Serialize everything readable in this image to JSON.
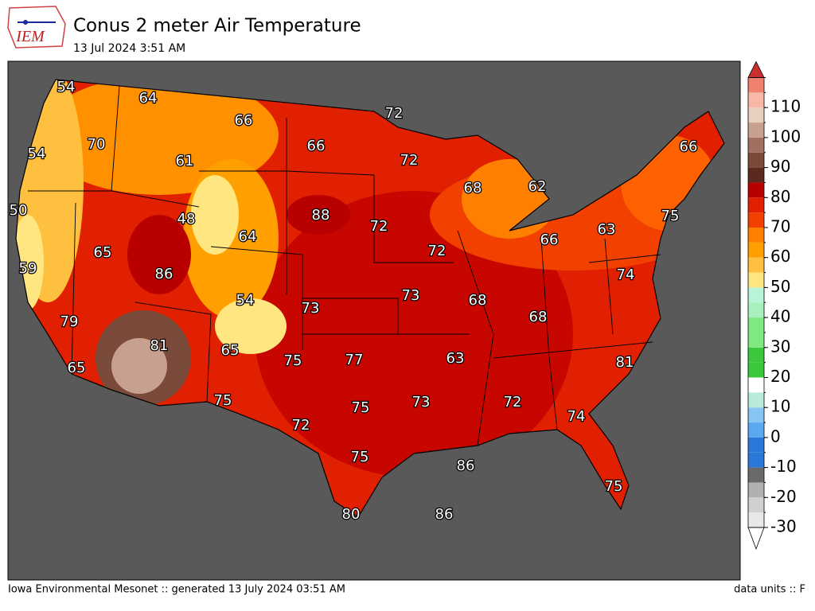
{
  "header": {
    "title": "Conus 2 meter Air Temperature",
    "subtitle": "13 Jul 2024 3:51 AM",
    "logo": "IEM"
  },
  "stations": [
    54,
    64,
    72,
    66,
    66,
    70,
    54,
    61,
    72,
    68,
    62,
    66,
    50,
    88,
    48,
    64,
    72,
    75,
    63,
    66,
    65,
    72,
    59,
    86,
    74,
    73,
    68,
    54,
    73,
    68,
    79,
    81,
    65,
    63,
    75,
    77,
    81,
    65,
    75,
    73,
    72,
    75,
    74,
    72,
    75,
    86,
    75,
    80,
    86
  ],
  "colorbar": {
    "ticks": [
      -30,
      -20,
      -10,
      0,
      10,
      20,
      30,
      40,
      50,
      60,
      70,
      80,
      90,
      100,
      110
    ],
    "levels": [
      -30,
      -25,
      -20,
      -15,
      -10,
      -5,
      0,
      5,
      10,
      15,
      20,
      25,
      30,
      35,
      40,
      45,
      50,
      55,
      60,
      65,
      70,
      75,
      80,
      85,
      90,
      95,
      100,
      105,
      110,
      115,
      120
    ],
    "colors": [
      "#e8e8e8",
      "#d0d0d0",
      "#b0b0b0",
      "#6a6a6a",
      "#2a78d8",
      "#2a78d8",
      "#5aa8f0",
      "#88c4f4",
      "#b8ecd8",
      "#ffffff",
      "#3cc83c",
      "#3cc83c",
      "#80e880",
      "#80e880",
      "#a8f0c0",
      "#b8f4d8",
      "#ffe680",
      "#ffc040",
      "#ffa000",
      "#ff7f00",
      "#f24000",
      "#e02000",
      "#b80000",
      "#5a2a20",
      "#7a4a3a",
      "#a07060",
      "#c8a090",
      "#e8d0c0",
      "#f8b8a8",
      "#f08070"
    ],
    "over_color": "#c83030",
    "under_color": "#ffffff"
  },
  "footer": {
    "left": "Iowa Environmental Mesonet :: generated 13 July 2024 03:51 AM",
    "right": "data units :: F"
  }
}
